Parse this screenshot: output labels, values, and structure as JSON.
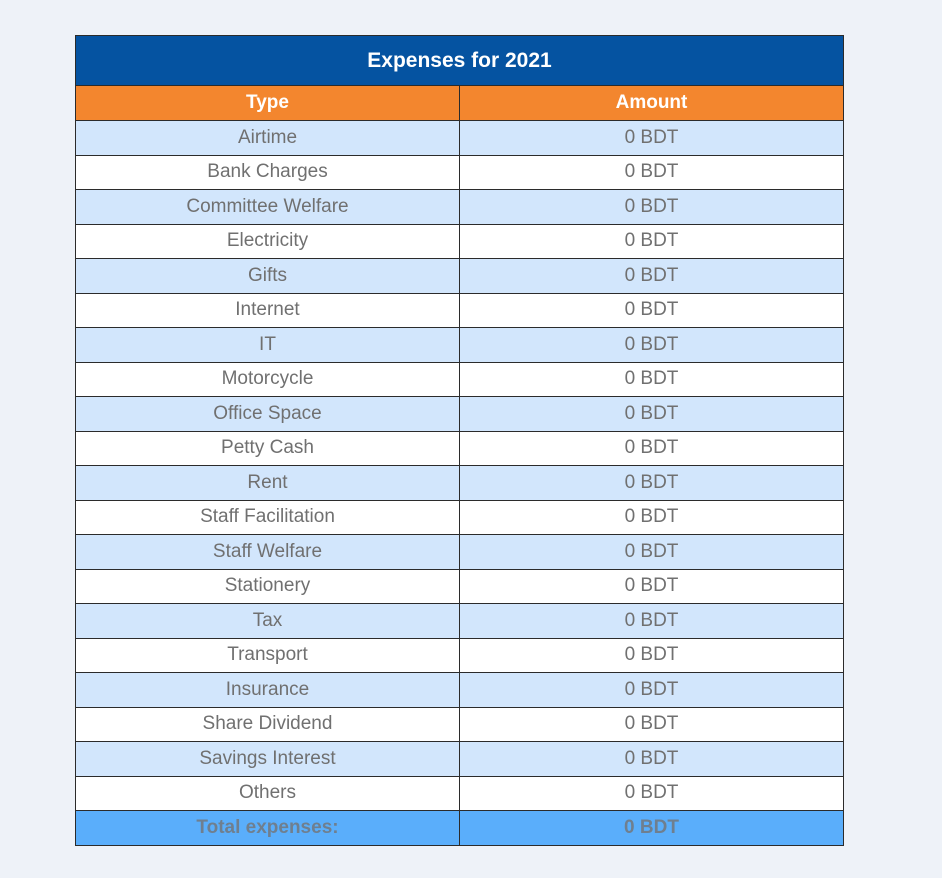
{
  "table": {
    "title": "Expenses for 2021",
    "headers": {
      "type": "Type",
      "amount": "Amount"
    },
    "rows": [
      {
        "type": "Airtime",
        "amount": "0 BDT"
      },
      {
        "type": "Bank Charges",
        "amount": "0 BDT"
      },
      {
        "type": "Committee Welfare",
        "amount": "0 BDT"
      },
      {
        "type": "Electricity",
        "amount": "0 BDT"
      },
      {
        "type": "Gifts",
        "amount": "0 BDT"
      },
      {
        "type": "Internet",
        "amount": "0 BDT"
      },
      {
        "type": "IT",
        "amount": "0 BDT"
      },
      {
        "type": "Motorcycle",
        "amount": "0 BDT"
      },
      {
        "type": "Office Space",
        "amount": "0 BDT"
      },
      {
        "type": "Petty Cash",
        "amount": "0 BDT"
      },
      {
        "type": "Rent",
        "amount": "0 BDT"
      },
      {
        "type": "Staff Facilitation",
        "amount": "0 BDT"
      },
      {
        "type": "Staff Welfare",
        "amount": "0 BDT"
      },
      {
        "type": "Stationery",
        "amount": "0 BDT"
      },
      {
        "type": "Tax",
        "amount": "0 BDT"
      },
      {
        "type": "Transport",
        "amount": "0 BDT"
      },
      {
        "type": "Insurance",
        "amount": "0 BDT"
      },
      {
        "type": "Share Dividend",
        "amount": "0 BDT"
      },
      {
        "type": "Savings Interest",
        "amount": "0 BDT"
      },
      {
        "type": "Others",
        "amount": "0 BDT"
      }
    ],
    "total": {
      "label": "Total expenses:",
      "amount": "0 BDT"
    }
  },
  "colors": {
    "title_bg": "#0553a1",
    "header_bg": "#f3862e",
    "row_alt_bg": "#d2e6fc",
    "row_bg": "#ffffff",
    "total_bg": "#5aaefb",
    "page_bg": "#eef2f8"
  }
}
